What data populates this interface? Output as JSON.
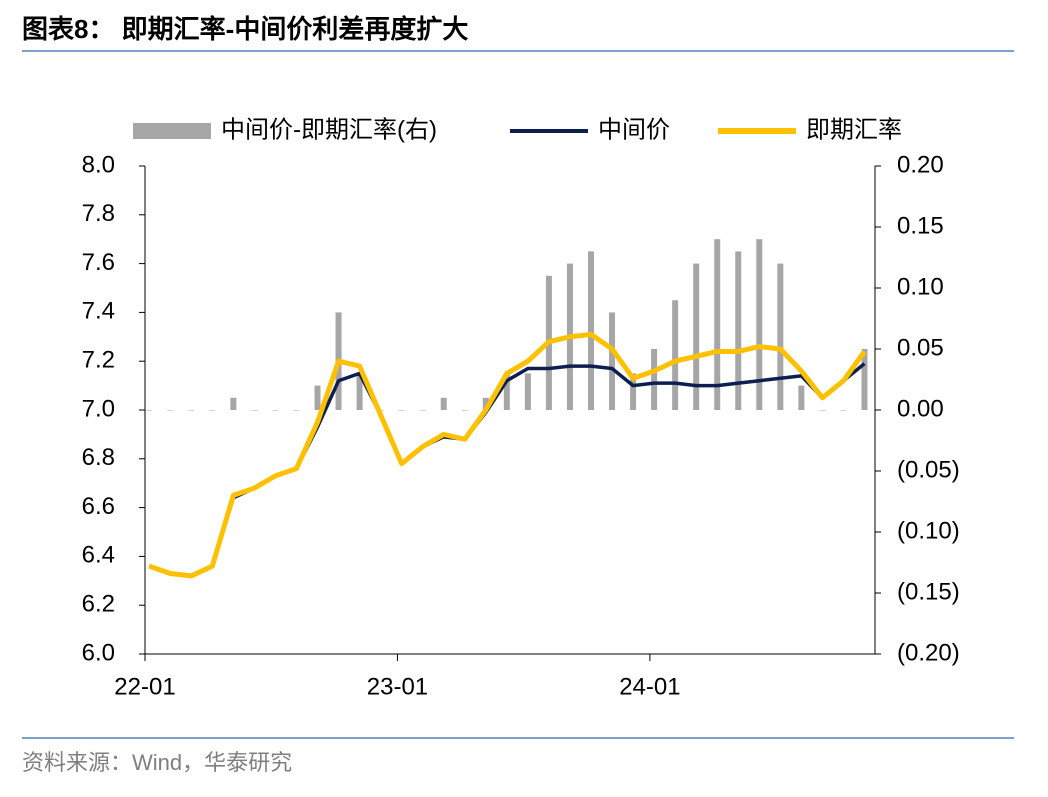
{
  "chart_data": {
    "type": "combo",
    "title": "图表8： 即期汇率-中间价利差再度扩大",
    "source": "资料来源：Wind，华泰研究",
    "x": [
      "22-01",
      "22-02",
      "22-03",
      "22-04",
      "22-05",
      "22-06",
      "22-07",
      "22-08",
      "22-09",
      "22-10",
      "22-11",
      "22-12",
      "23-01",
      "23-02",
      "23-03",
      "23-04",
      "23-05",
      "23-06",
      "23-07",
      "23-08",
      "23-09",
      "23-10",
      "23-11",
      "23-12",
      "24-01",
      "24-02",
      "24-03",
      "24-04",
      "24-05",
      "24-06",
      "24-07",
      "24-08",
      "24-09",
      "24-10",
      "24-11"
    ],
    "xticks": [
      "22-01",
      "23-01",
      "24-01"
    ],
    "ylim": [
      6.0,
      8.0
    ],
    "yticks": [
      {
        "value": 6.0,
        "label": "6.0"
      },
      {
        "value": 6.2,
        "label": "6.2"
      },
      {
        "value": 6.4,
        "label": "6.4"
      },
      {
        "value": 6.6,
        "label": "6.6"
      },
      {
        "value": 6.8,
        "label": "6.8"
      },
      {
        "value": 7.0,
        "label": "7.0"
      },
      {
        "value": 7.2,
        "label": "7.2"
      },
      {
        "value": 7.4,
        "label": "7.4"
      },
      {
        "value": 7.6,
        "label": "7.6"
      },
      {
        "value": 7.8,
        "label": "7.8"
      },
      {
        "value": 8.0,
        "label": "8.0"
      }
    ],
    "y2lim": [
      -0.2,
      0.2
    ],
    "y2ticks": [
      {
        "value": -0.2,
        "label": "(0.20)"
      },
      {
        "value": -0.15,
        "label": "(0.15)"
      },
      {
        "value": -0.1,
        "label": "(0.10)"
      },
      {
        "value": -0.05,
        "label": "(0.05)"
      },
      {
        "value": 0,
        "label": "0.00"
      },
      {
        "value": 0.05,
        "label": "0.05"
      },
      {
        "value": 0.1,
        "label": "0.10"
      },
      {
        "value": 0.15,
        "label": "0.15"
      },
      {
        "value": 0.2,
        "label": "0.20"
      }
    ],
    "series": [
      {
        "name": "中间价-即期汇率(右)",
        "type": "bar",
        "axis": "y2",
        "color": "#a6a6a6",
        "values": [
          0,
          0,
          0,
          0,
          0.01,
          0,
          0,
          0,
          0.02,
          0.08,
          0.03,
          0,
          0,
          0,
          0.01,
          0,
          0.01,
          0.03,
          0.03,
          0.11,
          0.12,
          0.13,
          0.08,
          0.03,
          0.05,
          0.09,
          0.12,
          0.14,
          0.13,
          0.14,
          0.12,
          0.02,
          0,
          0,
          0.05
        ]
      },
      {
        "name": "中间价",
        "type": "line",
        "color": "#0c1f4f",
        "values": [
          6.36,
          6.33,
          6.32,
          6.36,
          6.64,
          6.68,
          6.73,
          6.76,
          6.93,
          7.12,
          7.15,
          6.98,
          6.78,
          6.85,
          6.89,
          6.88,
          6.99,
          7.12,
          7.17,
          7.17,
          7.18,
          7.18,
          7.17,
          7.1,
          7.11,
          7.11,
          7.1,
          7.1,
          7.11,
          7.12,
          7.13,
          7.14,
          7.05,
          7.12,
          7.19
        ]
      },
      {
        "name": "即期汇率",
        "type": "line",
        "color": "#ffc000",
        "values": [
          6.36,
          6.33,
          6.32,
          6.36,
          6.65,
          6.68,
          6.73,
          6.76,
          6.95,
          7.2,
          7.18,
          6.98,
          6.78,
          6.85,
          6.9,
          6.88,
          7.0,
          7.15,
          7.2,
          7.28,
          7.3,
          7.31,
          7.25,
          7.13,
          7.16,
          7.2,
          7.22,
          7.24,
          7.24,
          7.26,
          7.25,
          7.16,
          7.05,
          7.12,
          7.24
        ]
      }
    ]
  }
}
